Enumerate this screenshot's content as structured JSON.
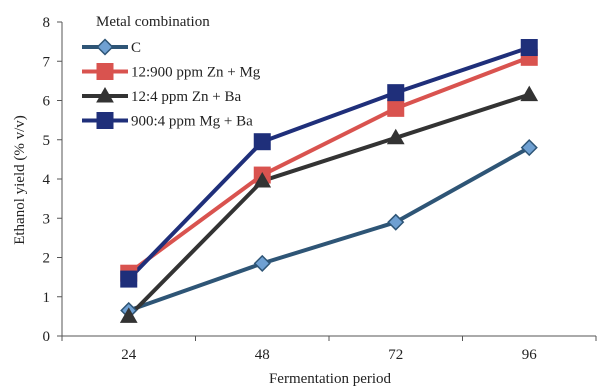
{
  "chart_data": {
    "type": "line",
    "title": "",
    "xlabel": "Fermentation period",
    "ylabel": "Ethanol yield (% v/v)",
    "categories": [
      "24",
      "48",
      "72",
      "96"
    ],
    "ylim": [
      0,
      8
    ],
    "yticks": [
      "0",
      "1",
      "2",
      "3",
      "4",
      "5",
      "6",
      "7",
      "8"
    ],
    "grid": false,
    "legend": {
      "title": "Metal combination",
      "placement": "top-left"
    },
    "series": [
      {
        "name": "C",
        "values": [
          0.65,
          1.85,
          2.9,
          4.8
        ],
        "color": "#2e5576",
        "marker": "diamond",
        "marker_fill": "#6fa0d2"
      },
      {
        "name": "12:900 ppm Zn + Mg",
        "values": [
          1.6,
          4.1,
          5.8,
          7.1
        ],
        "color": "#d9534f",
        "marker": "square",
        "marker_fill": "#d9534f"
      },
      {
        "name": "12:4 ppm Zn + Ba",
        "values": [
          0.5,
          3.95,
          5.05,
          6.15
        ],
        "color": "#333333",
        "marker": "triangle",
        "marker_fill": "#333333"
      },
      {
        "name": "900:4 ppm Mg + Ba",
        "values": [
          1.45,
          4.95,
          6.2,
          7.35
        ],
        "color": "#1f2f7a",
        "marker": "square",
        "marker_fill": "#1f2f7a"
      }
    ]
  }
}
